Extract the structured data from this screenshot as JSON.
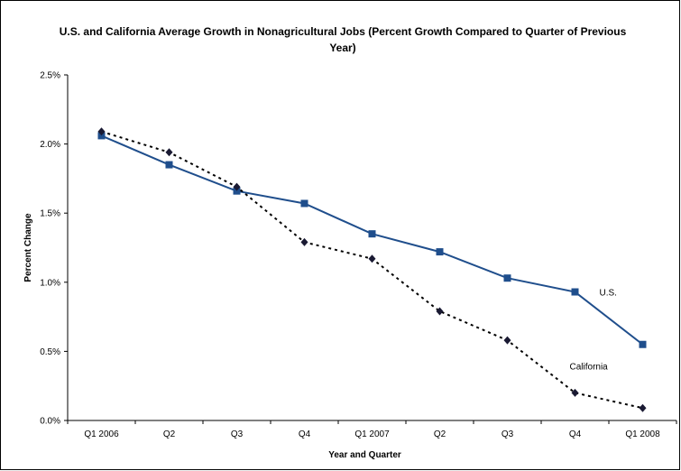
{
  "chart_data": {
    "type": "line",
    "title": "U.S. and California Average Growth in Nonagricultural Jobs (Percent Growth Compared to Quarter of Previous Year)",
    "xlabel": "Year and Quarter",
    "ylabel": "Percent Change",
    "categories": [
      "Q1 2006",
      "Q2",
      "Q3",
      "Q4",
      "Q1 2007",
      "Q2",
      "Q3",
      "Q4",
      "Q1 2008"
    ],
    "ylim": [
      0,
      2.5
    ],
    "yticks": [
      "0.0%",
      "0.5%",
      "1.0%",
      "1.5%",
      "2.0%",
      "2.5%"
    ],
    "ytick_values": [
      0,
      0.5,
      1.0,
      1.5,
      2.0,
      2.5
    ],
    "grid": false,
    "series": [
      {
        "name": "U.S.",
        "values": [
          2.06,
          1.85,
          1.66,
          1.57,
          1.35,
          1.22,
          1.03,
          0.93,
          0.55
        ],
        "color": "#1f4e8c",
        "style": "solid",
        "marker": "square"
      },
      {
        "name": "California",
        "values": [
          2.09,
          1.94,
          1.69,
          1.29,
          1.17,
          0.79,
          0.58,
          0.2,
          0.09
        ],
        "color": "#000000",
        "style": "dotted",
        "marker": "diamond"
      }
    ]
  }
}
